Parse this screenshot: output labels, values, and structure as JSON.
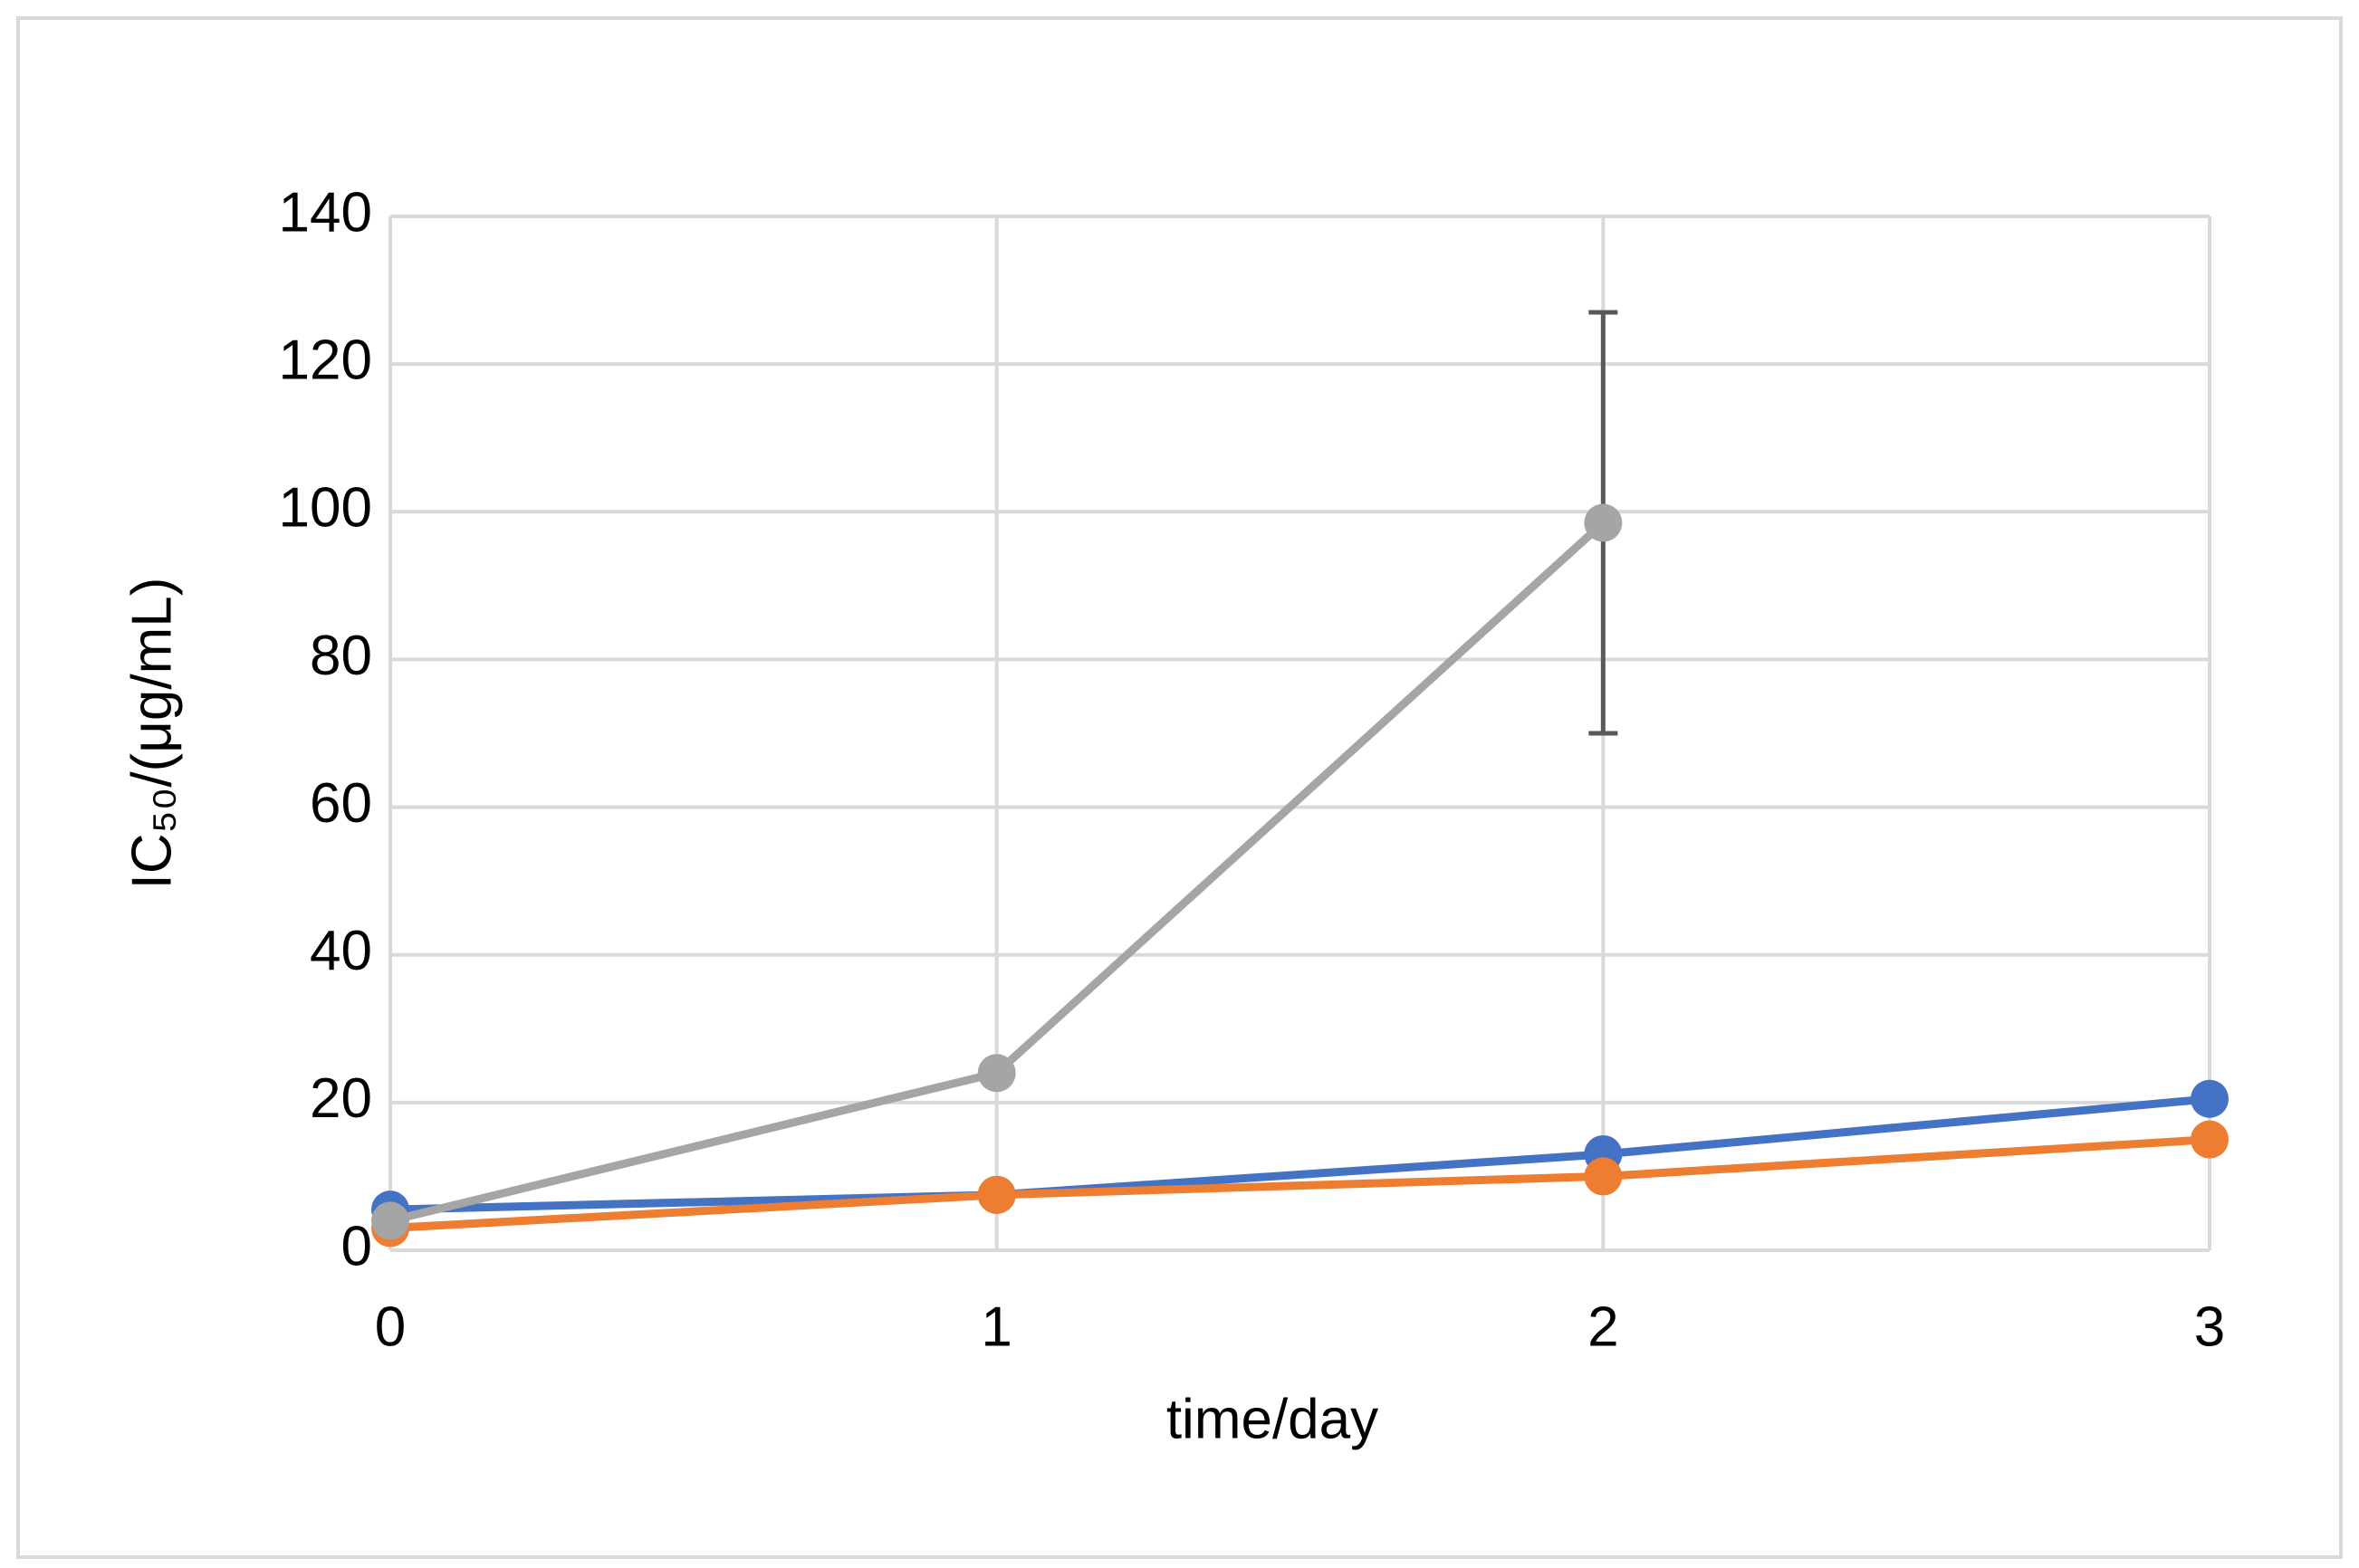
{
  "chart_data": {
    "type": "line",
    "x_label": "time/day",
    "y_label": "IC₅₀/(μg/mL)",
    "x": [
      0,
      1,
      2,
      3
    ],
    "xlim": [
      0,
      3
    ],
    "xticks": [
      0,
      1,
      2,
      3
    ],
    "ylim": [
      0,
      140
    ],
    "yticks": [
      0,
      20,
      40,
      60,
      80,
      100,
      120,
      140
    ],
    "grid": true,
    "series": [
      {
        "color": "#4472c4",
        "values": [
          5.5,
          7.5,
          13,
          20.5
        ]
      },
      {
        "color": "#ed7d31",
        "values": [
          3,
          7.5,
          10,
          15
        ]
      },
      {
        "color": "#a5a5a5",
        "values": [
          4,
          24,
          98.5,
          null
        ],
        "errors": [
          null,
          null,
          28.5,
          null
        ]
      }
    ]
  }
}
